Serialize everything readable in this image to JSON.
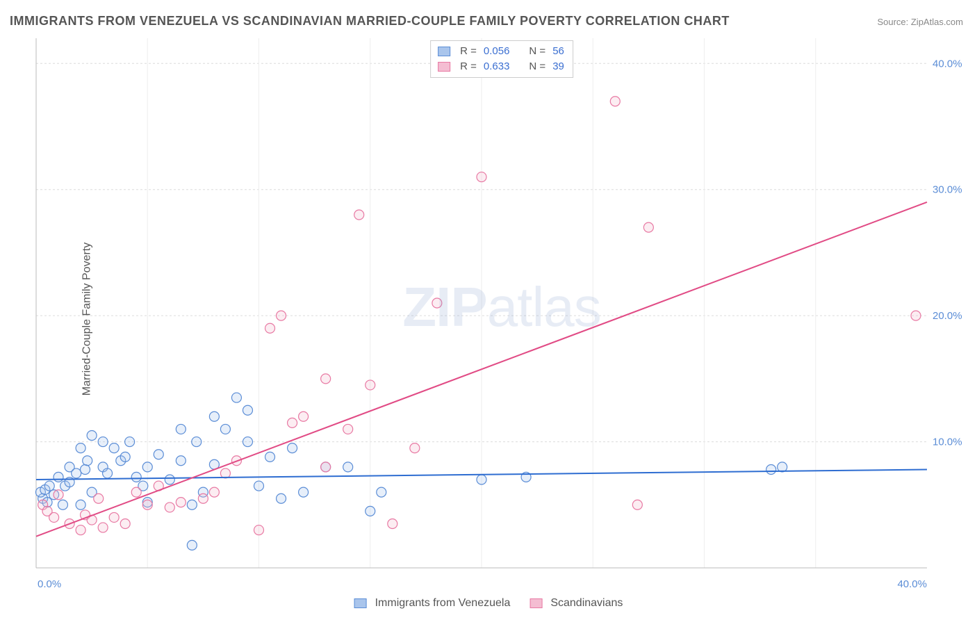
{
  "title": "IMMIGRANTS FROM VENEZUELA VS SCANDINAVIAN MARRIED-COUPLE FAMILY POVERTY CORRELATION CHART",
  "source_prefix": "Source: ",
  "source_name": "ZipAtlas.com",
  "y_axis_label": "Married-Couple Family Poverty",
  "watermark_bold": "ZIP",
  "watermark_light": "atlas",
  "chart": {
    "type": "scatter",
    "xlim": [
      0,
      40
    ],
    "ylim": [
      0,
      42
    ],
    "x_ticks": [
      0,
      40
    ],
    "x_tick_labels": [
      "0.0%",
      "40.0%"
    ],
    "y_ticks": [
      10,
      20,
      30,
      40
    ],
    "y_tick_labels": [
      "10.0%",
      "20.0%",
      "30.0%",
      "40.0%"
    ],
    "background_color": "#ffffff",
    "grid_color": "#dcdcdc",
    "axis_color": "#bbbbbb",
    "tick_label_color": "#5b8dd6",
    "marker_radius": 7,
    "marker_stroke_width": 1.2,
    "marker_fill_opacity": 0.28,
    "series": [
      {
        "id": "venezuela",
        "label": "Immigrants from Venezuela",
        "color_stroke": "#5b8dd6",
        "color_fill": "#a9c5ec",
        "R": "0.056",
        "N": "56",
        "trend": {
          "x1": 0,
          "y1": 7.0,
          "x2": 40,
          "y2": 7.8,
          "color": "#2e6dd1",
          "width": 2
        },
        "points": [
          [
            0.3,
            5.5
          ],
          [
            0.2,
            6.0
          ],
          [
            0.4,
            6.2
          ],
          [
            0.5,
            5.2
          ],
          [
            0.6,
            6.5
          ],
          [
            0.8,
            5.8
          ],
          [
            1.0,
            7.2
          ],
          [
            1.2,
            5.0
          ],
          [
            1.3,
            6.5
          ],
          [
            1.5,
            8.0
          ],
          [
            1.5,
            6.8
          ],
          [
            1.8,
            7.5
          ],
          [
            2.0,
            5.0
          ],
          [
            2.0,
            9.5
          ],
          [
            2.2,
            7.8
          ],
          [
            2.3,
            8.5
          ],
          [
            2.5,
            10.5
          ],
          [
            2.5,
            6.0
          ],
          [
            3.0,
            8.0
          ],
          [
            3.0,
            10.0
          ],
          [
            3.2,
            7.5
          ],
          [
            3.5,
            9.5
          ],
          [
            3.8,
            8.5
          ],
          [
            4.0,
            8.8
          ],
          [
            4.2,
            10.0
          ],
          [
            4.5,
            7.2
          ],
          [
            5.0,
            8.0
          ],
          [
            5.0,
            5.2
          ],
          [
            5.5,
            9.0
          ],
          [
            6.0,
            7.0
          ],
          [
            6.5,
            8.5
          ],
          [
            7.0,
            5.0
          ],
          [
            7.0,
            1.8
          ],
          [
            7.2,
            10.0
          ],
          [
            7.5,
            6.0
          ],
          [
            8.0,
            8.2
          ],
          [
            8.5,
            11.0
          ],
          [
            9.0,
            13.5
          ],
          [
            9.5,
            12.5
          ],
          [
            9.5,
            10.0
          ],
          [
            10.0,
            6.5
          ],
          [
            10.5,
            8.8
          ],
          [
            11.0,
            5.5
          ],
          [
            11.5,
            9.5
          ],
          [
            12.0,
            6.0
          ],
          [
            13.0,
            8.0
          ],
          [
            14.0,
            8.0
          ],
          [
            15.0,
            4.5
          ],
          [
            15.5,
            6.0
          ],
          [
            20.0,
            7.0
          ],
          [
            22.0,
            7.2
          ],
          [
            33.0,
            7.8
          ],
          [
            33.5,
            8.0
          ],
          [
            8.0,
            12.0
          ],
          [
            6.5,
            11.0
          ],
          [
            4.8,
            6.5
          ]
        ]
      },
      {
        "id": "scandinavian",
        "label": "Scandinavians",
        "color_stroke": "#e879a3",
        "color_fill": "#f4bdd2",
        "R": "0.633",
        "N": "39",
        "trend": {
          "x1": 0,
          "y1": 2.5,
          "x2": 40,
          "y2": 29.0,
          "color": "#e14b85",
          "width": 2
        },
        "points": [
          [
            0.3,
            5.0
          ],
          [
            0.5,
            4.5
          ],
          [
            0.8,
            4.0
          ],
          [
            1.0,
            5.8
          ],
          [
            1.5,
            3.5
          ],
          [
            2.0,
            3.0
          ],
          [
            2.2,
            4.2
          ],
          [
            2.5,
            3.8
          ],
          [
            2.8,
            5.5
          ],
          [
            3.0,
            3.2
          ],
          [
            3.5,
            4.0
          ],
          [
            4.0,
            3.5
          ],
          [
            4.5,
            6.0
          ],
          [
            5.0,
            5.0
          ],
          [
            5.5,
            6.5
          ],
          [
            6.0,
            4.8
          ],
          [
            6.5,
            5.2
          ],
          [
            7.5,
            5.5
          ],
          [
            8.0,
            6.0
          ],
          [
            8.5,
            7.5
          ],
          [
            9.0,
            8.5
          ],
          [
            10.0,
            3.0
          ],
          [
            10.5,
            19.0
          ],
          [
            11.0,
            20.0
          ],
          [
            11.5,
            11.5
          ],
          [
            12.0,
            12.0
          ],
          [
            13.0,
            8.0
          ],
          [
            13.0,
            15.0
          ],
          [
            14.0,
            11.0
          ],
          [
            14.5,
            28.0
          ],
          [
            15.0,
            14.5
          ],
          [
            16.0,
            3.5
          ],
          [
            17.0,
            9.5
          ],
          [
            18.0,
            21.0
          ],
          [
            20.0,
            31.0
          ],
          [
            26.0,
            37.0
          ],
          [
            27.0,
            5.0
          ],
          [
            27.5,
            27.0
          ],
          [
            39.5,
            20.0
          ]
        ]
      }
    ]
  },
  "legend_top": {
    "r_label": "R =",
    "n_label": "N ="
  }
}
